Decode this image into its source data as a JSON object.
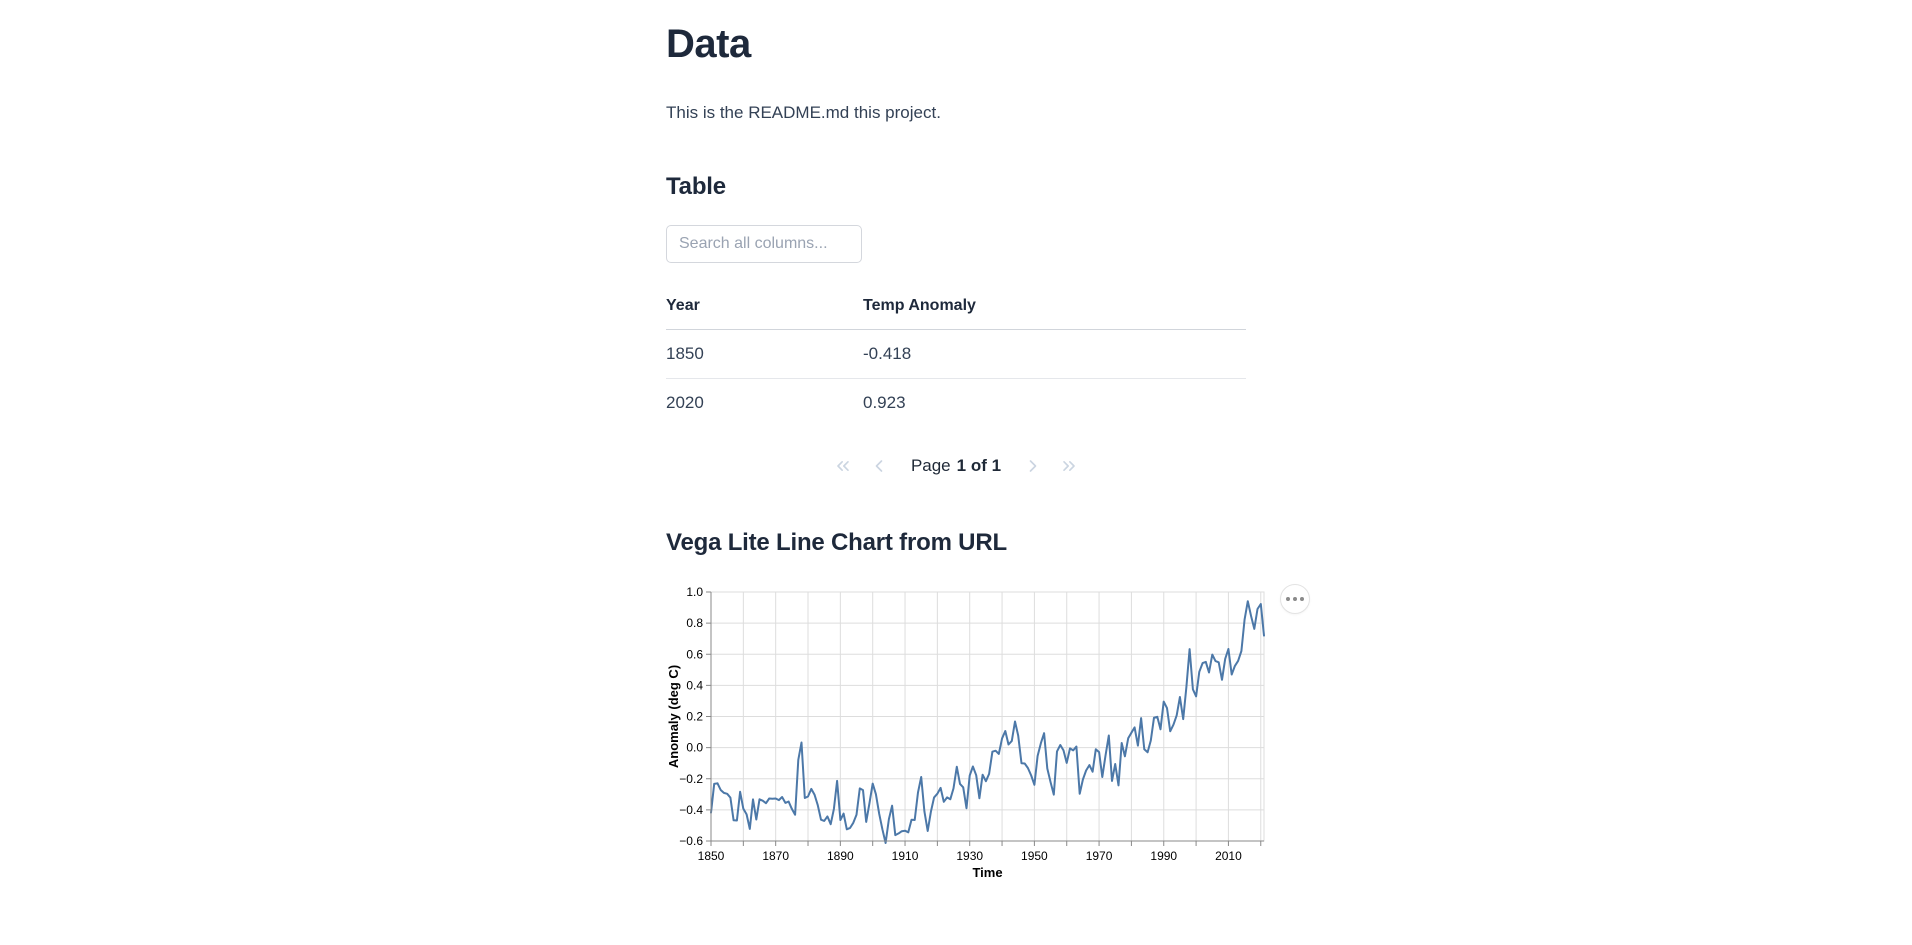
{
  "page": {
    "title": "Data",
    "readme_text": "This is the README.md this project."
  },
  "table": {
    "section_title": "Table",
    "search_placeholder": "Search all columns...",
    "columns": [
      "Year",
      "Temp Anomaly"
    ],
    "rows": [
      [
        "1850",
        "-0.418"
      ],
      [
        "2020",
        "0.923"
      ]
    ],
    "pagination": {
      "page_label": "Page",
      "page_status": "1 of 1",
      "icons": [
        "double-chevron-left-icon",
        "chevron-left-icon",
        "chevron-right-icon",
        "double-chevron-right-icon"
      ],
      "disabled_color": "#cbd5e1"
    }
  },
  "chart_section": {
    "title": "Vega Lite Line Chart from URL",
    "actions_icon": "ellipsis-menu-icon"
  },
  "chart_data": {
    "type": "line",
    "title": "",
    "xlabel": "Time",
    "ylabel": "Anomaly (deg C)",
    "x_domain": [
      1850,
      2021
    ],
    "y_domain": [
      -0.6,
      1.0
    ],
    "x_start": 1850,
    "x_step": 1,
    "values": [
      -0.418,
      -0.233,
      -0.229,
      -0.272,
      -0.291,
      -0.297,
      -0.321,
      -0.467,
      -0.468,
      -0.284,
      -0.392,
      -0.429,
      -0.522,
      -0.333,
      -0.462,
      -0.332,
      -0.341,
      -0.357,
      -0.327,
      -0.329,
      -0.327,
      -0.337,
      -0.317,
      -0.355,
      -0.346,
      -0.393,
      -0.431,
      -0.078,
      0.033,
      -0.324,
      -0.314,
      -0.265,
      -0.302,
      -0.368,
      -0.463,
      -0.471,
      -0.442,
      -0.492,
      -0.394,
      -0.214,
      -0.465,
      -0.424,
      -0.525,
      -0.516,
      -0.483,
      -0.431,
      -0.262,
      -0.273,
      -0.477,
      -0.355,
      -0.231,
      -0.299,
      -0.425,
      -0.525,
      -0.613,
      -0.459,
      -0.373,
      -0.562,
      -0.551,
      -0.537,
      -0.534,
      -0.544,
      -0.463,
      -0.465,
      -0.288,
      -0.189,
      -0.409,
      -0.536,
      -0.412,
      -0.32,
      -0.296,
      -0.259,
      -0.348,
      -0.32,
      -0.332,
      -0.262,
      -0.123,
      -0.233,
      -0.255,
      -0.389,
      -0.18,
      -0.121,
      -0.177,
      -0.325,
      -0.174,
      -0.216,
      -0.169,
      -0.026,
      -0.02,
      -0.04,
      0.06,
      0.107,
      0.02,
      0.043,
      0.168,
      0.077,
      -0.101,
      -0.102,
      -0.131,
      -0.179,
      -0.239,
      -0.054,
      0.029,
      0.093,
      -0.134,
      -0.223,
      -0.302,
      -0.024,
      0.017,
      -0.018,
      -0.098,
      -0.005,
      -0.018,
      0.007,
      -0.297,
      -0.205,
      -0.147,
      -0.112,
      -0.155,
      -0.011,
      -0.029,
      -0.189,
      -0.051,
      0.078,
      -0.214,
      -0.105,
      -0.243,
      0.03,
      -0.056,
      0.06,
      0.096,
      0.13,
      0.013,
      0.19,
      -0.011,
      -0.03,
      0.046,
      0.192,
      0.198,
      0.118,
      0.296,
      0.254,
      0.105,
      0.148,
      0.208,
      0.325,
      0.183,
      0.39,
      0.633,
      0.375,
      0.329,
      0.487,
      0.543,
      0.551,
      0.483,
      0.598,
      0.556,
      0.548,
      0.436,
      0.571,
      0.634,
      0.47,
      0.525,
      0.557,
      0.621,
      0.824,
      0.941,
      0.845,
      0.763,
      0.891,
      0.923,
      0.72
    ],
    "y_ticks": [
      -0.6,
      -0.4,
      -0.2,
      0,
      0.2,
      0.4,
      0.6,
      0.8,
      1.0
    ],
    "y_tick_labels": [
      "−0.6",
      "−0.4",
      "−0.2",
      "0.0",
      "0.2",
      "0.4",
      "0.6",
      "0.8",
      "1.0"
    ],
    "x_grid_ticks": [
      1850,
      1860,
      1870,
      1880,
      1890,
      1900,
      1910,
      1920,
      1930,
      1940,
      1950,
      1960,
      1970,
      1980,
      1990,
      2000,
      2010,
      2020
    ],
    "x_label_ticks": [
      1850,
      1870,
      1890,
      1910,
      1930,
      1950,
      1970,
      1990,
      2010
    ],
    "x_tick_labels": [
      "1850",
      "1870",
      "1890",
      "1910",
      "1930",
      "1950",
      "1970",
      "1990",
      "2010"
    ],
    "grid": true,
    "legend": "none",
    "line_color": "#4c78a8",
    "grid_color": "#dddddd",
    "axis_color": "#888888",
    "label_color": "#000000"
  }
}
